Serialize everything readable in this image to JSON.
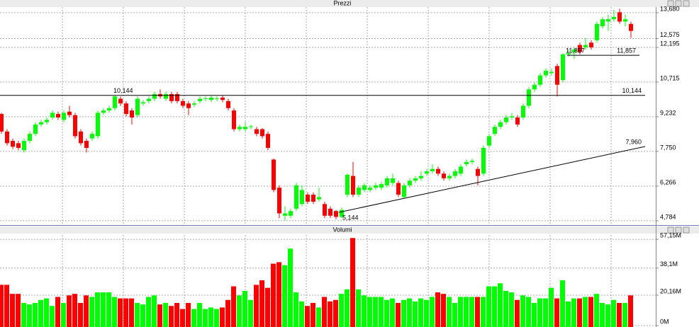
{
  "chart_data": [
    {
      "type": "candlestick",
      "title": "Prezzi",
      "up_color": "#00ff00",
      "down_color": "#ff0000",
      "open": [
        9.35,
        8.6,
        8.2,
        8.1,
        7.8,
        8.2,
        8.5,
        8.9,
        9.0,
        9.2,
        9.35,
        9.1,
        9.45,
        9.3,
        8.6,
        8.2,
        8.3,
        8.4,
        9.4,
        9.5,
        9.6,
        10.0,
        9.8,
        9.5,
        9.3,
        9.8,
        9.9,
        10.0,
        10.2,
        10.0,
        10.2,
        10.2,
        9.9,
        9.8,
        9.75,
        9.9,
        10.0,
        9.95,
        10.0,
        10.05,
        9.9,
        9.5,
        8.7,
        8.7,
        8.8,
        8.7,
        8.7,
        8.5,
        7.4,
        6.2,
        5.0,
        5.0,
        5.3,
        5.5,
        5.9,
        5.9,
        5.7,
        5.5,
        5.3,
        5.2,
        4.95,
        5.9,
        6.7,
        5.9,
        6.1,
        6.1,
        6.2,
        6.2,
        6.3,
        6.4,
        6.4,
        5.8,
        6.3,
        6.5,
        6.6,
        6.8,
        6.9,
        7.0,
        6.8,
        6.6,
        6.7,
        6.8,
        7.2,
        7.3,
        7.0,
        6.8,
        8.0,
        8.5,
        8.8,
        9.0,
        9.2,
        9.2,
        9.2,
        9.7,
        10.4,
        10.6,
        11.0,
        11.1,
        11.4,
        10.8,
        11.9,
        12.0,
        12.3,
        12.2,
        12.4,
        12.5,
        13.1,
        13.3,
        13.4,
        13.7,
        13.3,
        13.2
      ],
      "high": [
        9.4,
        8.7,
        8.3,
        8.2,
        8.3,
        8.6,
        9.0,
        9.1,
        9.2,
        9.5,
        9.45,
        9.5,
        9.7,
        9.4,
        8.7,
        8.3,
        8.6,
        9.5,
        9.6,
        9.7,
        10.14,
        10.1,
        9.9,
        9.6,
        10.1,
        9.95,
        10.1,
        10.3,
        10.4,
        10.3,
        10.3,
        10.3,
        10.0,
        9.9,
        9.9,
        10.1,
        10.1,
        10.15,
        10.1,
        10.15,
        10.0,
        9.6,
        8.9,
        9.0,
        8.9,
        8.8,
        8.75,
        8.6,
        7.45,
        6.3,
        5.4,
        5.3,
        6.4,
        6.3,
        6.0,
        6.0,
        6.2,
        5.6,
        5.4,
        5.25,
        5.35,
        6.8,
        7.3,
        6.3,
        6.4,
        6.3,
        6.4,
        6.45,
        6.7,
        6.8,
        6.5,
        6.4,
        6.6,
        6.7,
        6.9,
        7.0,
        7.2,
        7.1,
        6.9,
        6.8,
        7.0,
        7.2,
        7.4,
        7.45,
        7.1,
        8.0,
        8.5,
        8.9,
        9.1,
        9.3,
        9.4,
        9.3,
        9.8,
        10.5,
        10.7,
        11.1,
        11.3,
        11.3,
        11.5,
        11.95,
        12.1,
        12.2,
        12.4,
        12.6,
        12.5,
        13.3,
        13.5,
        13.6,
        13.8,
        13.85,
        13.6,
        13.3
      ],
      "low": [
        8.5,
        8.0,
        7.85,
        7.8,
        7.7,
        8.1,
        8.4,
        8.8,
        8.9,
        9.1,
        9.1,
        9.0,
        9.2,
        8.3,
        8.0,
        7.7,
        8.2,
        8.3,
        9.3,
        9.4,
        9.5,
        9.7,
        9.25,
        8.9,
        9.2,
        9.7,
        9.8,
        9.9,
        10.0,
        9.9,
        9.8,
        9.8,
        9.6,
        9.3,
        9.65,
        9.8,
        9.9,
        9.85,
        9.9,
        9.85,
        9.5,
        8.6,
        8.6,
        8.6,
        8.7,
        8.4,
        8.3,
        7.8,
        6.0,
        4.9,
        4.8,
        4.9,
        5.2,
        5.4,
        5.5,
        5.5,
        5.6,
        4.9,
        4.9,
        4.85,
        4.9,
        5.8,
        5.8,
        5.8,
        6.0,
        6.0,
        6.1,
        6.1,
        6.2,
        6.3,
        5.8,
        5.75,
        6.2,
        6.4,
        6.5,
        6.7,
        6.8,
        6.7,
        6.5,
        6.5,
        6.6,
        6.7,
        7.1,
        7.2,
        6.3,
        6.7,
        7.9,
        8.4,
        8.7,
        8.9,
        9.1,
        8.8,
        9.1,
        9.6,
        10.3,
        10.5,
        10.9,
        11.0,
        10.1,
        10.7,
        11.8,
        11.7,
        11.9,
        12.1,
        12.1,
        12.4,
        13.0,
        12.9,
        13.3,
        13.2,
        13.1,
        12.6
      ],
      "close": [
        8.6,
        8.1,
        7.95,
        7.9,
        8.2,
        8.5,
        8.9,
        9.0,
        9.1,
        9.4,
        9.2,
        9.4,
        9.3,
        8.4,
        8.1,
        7.9,
        8.5,
        9.4,
        9.5,
        9.6,
        10.1,
        9.8,
        9.35,
        9.2,
        10.0,
        9.85,
        10.0,
        10.2,
        10.1,
        10.2,
        9.9,
        9.9,
        9.7,
        9.6,
        9.8,
        10.0,
        10.02,
        10.05,
        10.02,
        9.95,
        9.6,
        8.7,
        8.8,
        8.8,
        8.82,
        8.5,
        8.4,
        7.9,
        6.1,
        5.1,
        5.1,
        5.2,
        6.3,
        6.1,
        5.6,
        5.6,
        5.8,
        5.0,
        5.0,
        4.95,
        5.25,
        6.75,
        5.9,
        6.2,
        6.3,
        6.2,
        6.3,
        6.35,
        6.6,
        6.6,
        5.9,
        6.3,
        6.5,
        6.6,
        6.7,
        6.9,
        7.0,
        6.8,
        6.6,
        6.7,
        6.9,
        7.1,
        7.3,
        7.35,
        6.7,
        7.9,
        8.4,
        8.8,
        9.0,
        9.2,
        9.25,
        8.9,
        9.7,
        10.4,
        10.6,
        11.0,
        11.2,
        11.15,
        10.6,
        11.9,
        11.95,
        12.1,
        12.0,
        12.3,
        12.2,
        13.2,
        13.4,
        13.4,
        13.5,
        13.3,
        13.4,
        12.9
      ],
      "ylim": [
        4.6,
        13.92
      ],
      "yticks": [
        {
          "value": 13.68,
          "label": "13,680"
        },
        {
          "value": 12.575,
          "label": "12,575"
        },
        {
          "value": 12.195,
          "label": "12,195"
        },
        {
          "value": 10.715,
          "label": "10,715"
        },
        {
          "value": 9.232,
          "label": "9,232"
        },
        {
          "value": 7.75,
          "label": "7,750"
        },
        {
          "value": 6.266,
          "label": "6,266"
        },
        {
          "value": 4.784,
          "label": "4,784"
        }
      ],
      "grid": true,
      "levels": [
        {
          "value": 10.144,
          "label": "10,144"
        },
        {
          "value": 11.857,
          "label": "11,857"
        }
      ],
      "trendline": {
        "start": {
          "value": 5.144,
          "label": "5,144"
        },
        "end": {
          "value": 7.96,
          "label": "7,960"
        }
      }
    },
    {
      "type": "bar",
      "title": "Volumi",
      "up_color": "#00ff00",
      "down_color": "#ff0000",
      "values": [
        27,
        27,
        21,
        21,
        15,
        14,
        15,
        17,
        18,
        13,
        19,
        15,
        20,
        21,
        15,
        20,
        19,
        22,
        22,
        22,
        19,
        18,
        18,
        18,
        15,
        14,
        19,
        20,
        14,
        15,
        13,
        15,
        11,
        15,
        11,
        15,
        11,
        12,
        11,
        12,
        17,
        26,
        20,
        23,
        17,
        27,
        30,
        25,
        41,
        42,
        40,
        51,
        22,
        16,
        13,
        15,
        12,
        19,
        16,
        17,
        21,
        24,
        58,
        24,
        20,
        19,
        19,
        19,
        17,
        18,
        15,
        17,
        18,
        16,
        18,
        17,
        19,
        22,
        21,
        19,
        15,
        19,
        19,
        19,
        19,
        19,
        26,
        26,
        28,
        23,
        22,
        17,
        20,
        19,
        15,
        18,
        18,
        25,
        18,
        30,
        16,
        18,
        18,
        19,
        19,
        21,
        15,
        14,
        17,
        15,
        15,
        20
      ],
      "ylim": [
        0,
        60
      ],
      "yticks": [
        {
          "value": 57.15,
          "label": "57,15M"
        },
        {
          "value": 38.1,
          "label": "38,1M"
        },
        {
          "value": 20.16,
          "label": "20,16M"
        },
        {
          "value": 0,
          "label": "0M"
        }
      ],
      "grid": true
    }
  ]
}
